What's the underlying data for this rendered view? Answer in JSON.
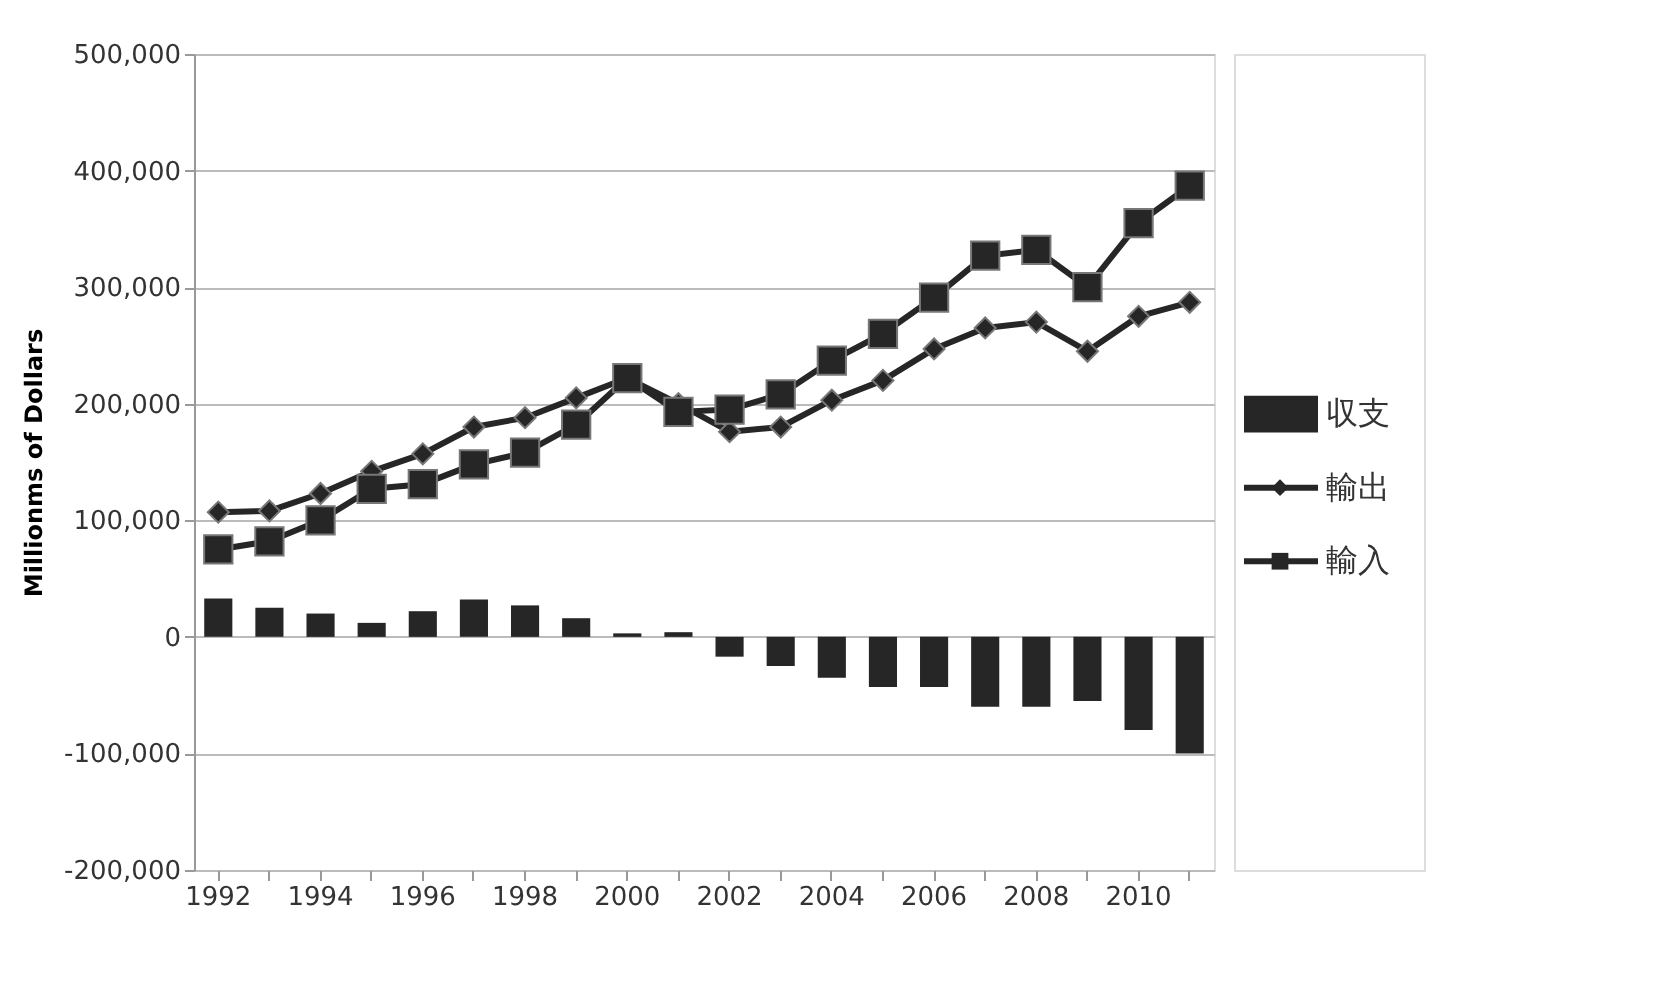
{
  "chart_data": {
    "type": "bar",
    "ylabel": "Millionms of Dollars",
    "categories": [
      "1992",
      null,
      "1994",
      null,
      "1996",
      null,
      "1998",
      null,
      "2000",
      null,
      "2002",
      null,
      "2004",
      null,
      "2006",
      null,
      "2008",
      null,
      "2010",
      null
    ],
    "series": [
      {
        "name": "収支",
        "color": "#262626",
        "values": [
          33000,
          25000,
          20000,
          12000,
          22000,
          32000,
          27000,
          16000,
          3000,
          4000,
          -17000,
          -25000,
          -35000,
          -43000,
          -43000,
          -60000,
          -60000,
          -55000,
          -80000,
          -100000
        ]
      },
      {
        "name": "輸出",
        "type": "line",
        "marker": "diamond",
        "color": "#262626",
        "values": [
          107000,
          108000,
          123000,
          142000,
          157000,
          180000,
          188000,
          205000,
          222000,
          200000,
          176000,
          180000,
          203000,
          220000,
          247000,
          265000,
          270000,
          245000,
          275000,
          287000
        ]
      },
      {
        "name": "輸入",
        "type": "line",
        "marker": "square",
        "color": "#262626",
        "values": [
          75000,
          82000,
          100000,
          127000,
          131000,
          148000,
          158000,
          182000,
          222000,
          193000,
          195000,
          208000,
          237000,
          260000,
          291000,
          327000,
          332000,
          300000,
          355000,
          387000
        ]
      }
    ],
    "ylim": [
      -200000,
      500000
    ],
    "yticks": [
      {
        "value": -200000,
        "label": "-200,000"
      },
      {
        "value": -100000,
        "label": "-100,000"
      },
      {
        "value": 0,
        "label": "0"
      },
      {
        "value": 100000,
        "label": "100,000"
      },
      {
        "value": 200000,
        "label": "200,000"
      },
      {
        "value": 300000,
        "label": "300,000"
      },
      {
        "value": 400000,
        "label": "400,000"
      },
      {
        "value": 500000,
        "label": "500,000"
      }
    ],
    "grid": "y",
    "legend": "right"
  }
}
